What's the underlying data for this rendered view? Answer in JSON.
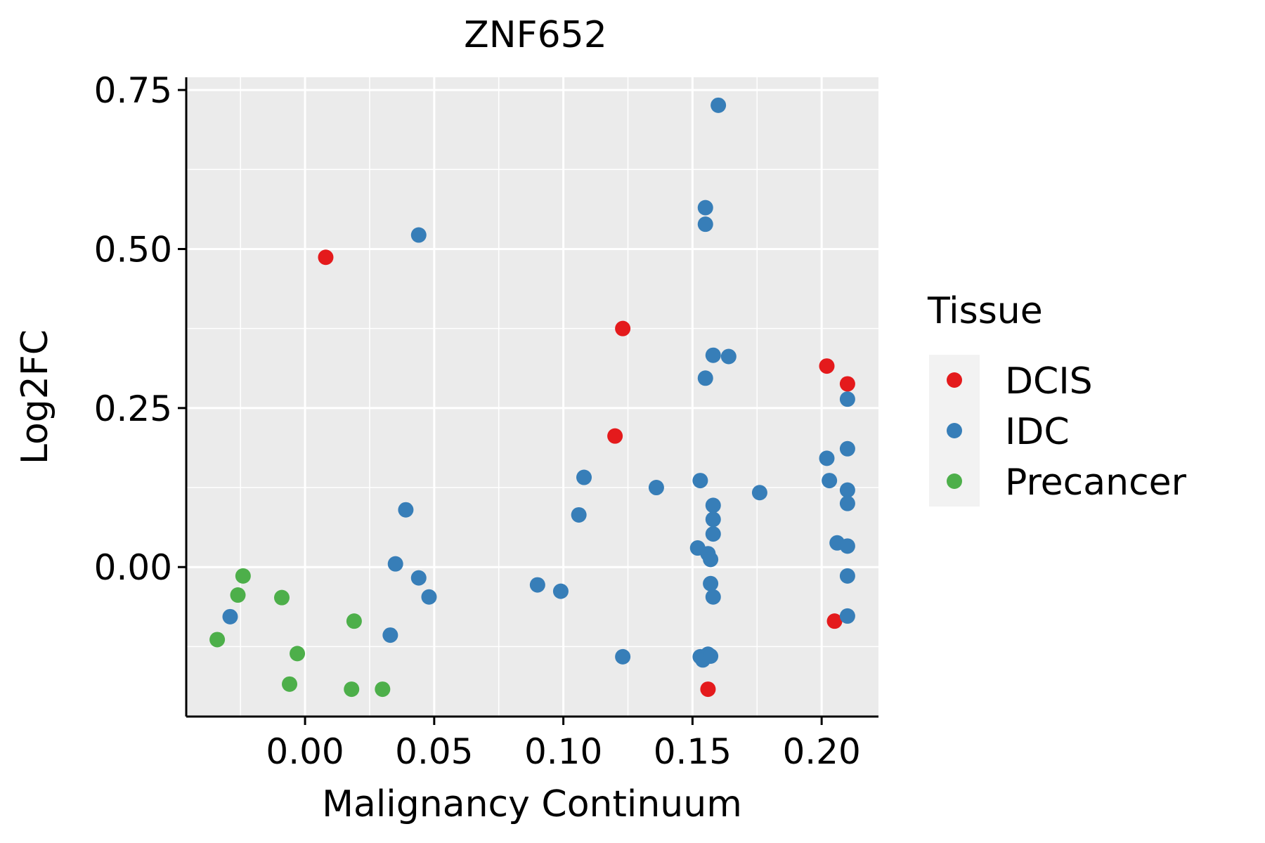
{
  "chart_data": {
    "type": "scatter",
    "title": "ZNF652",
    "xlabel": "Malignancy Continuum",
    "ylabel": "Log2FC",
    "xlim": [
      -0.046,
      0.222
    ],
    "ylim": [
      -0.235,
      0.77
    ],
    "xticks": [
      0.0,
      0.05,
      0.1,
      0.15,
      0.2
    ],
    "xtick_labels": [
      "0.00",
      "0.05",
      "0.10",
      "0.15",
      "0.20"
    ],
    "yticks": [
      0.0,
      0.25,
      0.5,
      0.75
    ],
    "ytick_labels": [
      "0.00",
      "0.25",
      "0.50",
      "0.75"
    ],
    "grid": true,
    "legend": {
      "title": "Tissue",
      "position": "right",
      "entries": [
        "DCIS",
        "IDC",
        "Precancer"
      ]
    },
    "colors": {
      "DCIS": "#E41A1C",
      "IDC": "#377EB8",
      "Precancer": "#4DAF4A"
    },
    "series": [
      {
        "name": "DCIS",
        "points": [
          [
            0.008,
            0.487
          ],
          [
            0.123,
            0.375
          ],
          [
            0.12,
            0.206
          ],
          [
            0.202,
            0.316
          ],
          [
            0.21,
            0.288
          ],
          [
            0.205,
            -0.085
          ],
          [
            0.156,
            -0.192
          ]
        ]
      },
      {
        "name": "IDC",
        "points": [
          [
            0.16,
            0.726
          ],
          [
            0.155,
            0.565
          ],
          [
            0.155,
            0.539
          ],
          [
            0.044,
            0.522
          ],
          [
            0.158,
            0.333
          ],
          [
            0.164,
            0.331
          ],
          [
            0.155,
            0.297
          ],
          [
            0.21,
            0.264
          ],
          [
            0.21,
            0.186
          ],
          [
            0.202,
            0.171
          ],
          [
            0.108,
            0.141
          ],
          [
            0.203,
            0.136
          ],
          [
            0.153,
            0.136
          ],
          [
            0.136,
            0.125
          ],
          [
            0.21,
            0.121
          ],
          [
            0.176,
            0.117
          ],
          [
            0.21,
            0.1
          ],
          [
            0.158,
            0.097
          ],
          [
            0.039,
            0.09
          ],
          [
            0.106,
            0.082
          ],
          [
            0.158,
            0.075
          ],
          [
            0.158,
            0.052
          ],
          [
            0.206,
            0.038
          ],
          [
            0.21,
            0.033
          ],
          [
            0.152,
            0.03
          ],
          [
            0.156,
            0.021
          ],
          [
            0.157,
            0.012
          ],
          [
            0.035,
            0.005
          ],
          [
            0.044,
            -0.017
          ],
          [
            0.21,
            -0.014
          ],
          [
            0.09,
            -0.028
          ],
          [
            0.157,
            -0.026
          ],
          [
            0.099,
            -0.038
          ],
          [
            0.048,
            -0.047
          ],
          [
            0.158,
            -0.047
          ],
          [
            -0.029,
            -0.078
          ],
          [
            0.21,
            -0.077
          ],
          [
            0.033,
            -0.107
          ],
          [
            0.123,
            -0.141
          ],
          [
            0.153,
            -0.141
          ],
          [
            0.156,
            -0.137
          ],
          [
            0.154,
            -0.146
          ],
          [
            0.157,
            -0.14
          ]
        ]
      },
      {
        "name": "Precancer",
        "points": [
          [
            -0.024,
            -0.014
          ],
          [
            -0.026,
            -0.044
          ],
          [
            -0.009,
            -0.048
          ],
          [
            -0.034,
            -0.114
          ],
          [
            0.019,
            -0.085
          ],
          [
            -0.003,
            -0.136
          ],
          [
            -0.006,
            -0.184
          ],
          [
            0.018,
            -0.192
          ],
          [
            0.03,
            -0.192
          ]
        ]
      }
    ]
  }
}
